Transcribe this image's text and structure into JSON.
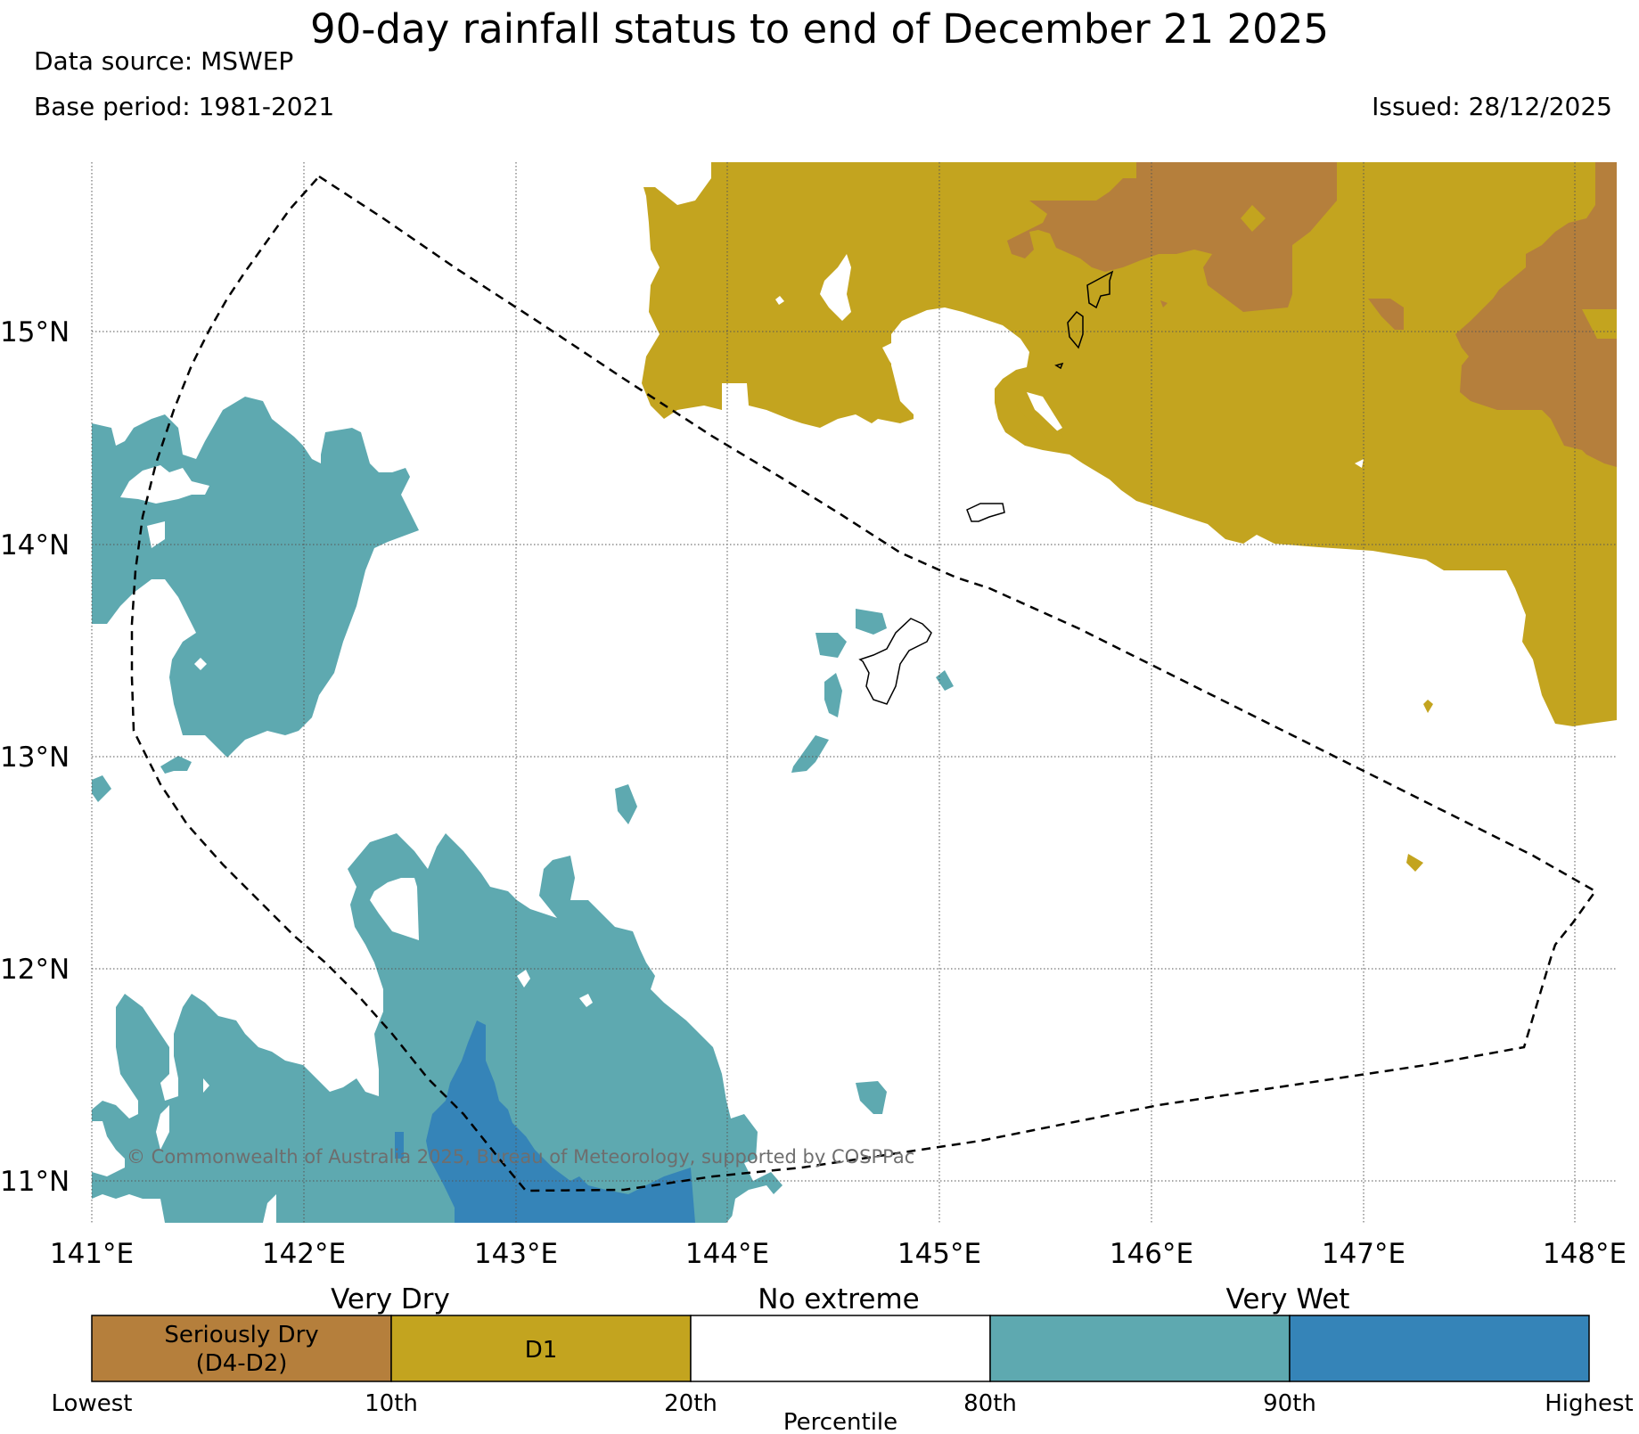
{
  "title": "90-day rainfall status to end of December 21 2025",
  "data_source": "Data source: MSWEP",
  "base_period": "Base period: 1981-2021",
  "issued": "Issued: 28/12/2025",
  "copyright": "© Commonwealth of Australia 2025, Bureau of Meteorology, supported by COSPPac",
  "map": {
    "lat_labels": [
      "15°N",
      "14°N",
      "13°N",
      "12°N",
      "11°N"
    ],
    "lon_labels": [
      "141°E",
      "142°E",
      "143°E",
      "144°E",
      "145°E",
      "146°E",
      "147°E",
      "148°E"
    ],
    "extent": {
      "lon": [
        141,
        148.2
      ],
      "lat": [
        10.8,
        15.8
      ]
    }
  },
  "legend": {
    "groups": [
      "Very Dry",
      "No extreme",
      "Very Wet"
    ],
    "boxes": [
      {
        "label_1": "Seriously Dry",
        "label_2": "(D4-D2)",
        "color": "#b57f3c"
      },
      {
        "label_1": "D1",
        "label_2": "",
        "color": "#c3a41f"
      },
      {
        "label_1": "",
        "label_2": "",
        "color": "#ffffff"
      },
      {
        "label_1": "",
        "label_2": "",
        "color": "#5ea9b0"
      },
      {
        "label_1": "",
        "label_2": "",
        "color": "#3584b8"
      }
    ],
    "ticks": [
      "Lowest",
      "10th",
      "20th",
      "80th",
      "90th",
      "Highest"
    ],
    "axis_label": "Percentile"
  },
  "colors": {
    "seriously_dry": "#b57f3c",
    "d1": "#c3a41f",
    "no_extreme": "#ffffff",
    "very_wet_80_90": "#5ea9b0",
    "very_wet_90_plus": "#3584b8"
  }
}
